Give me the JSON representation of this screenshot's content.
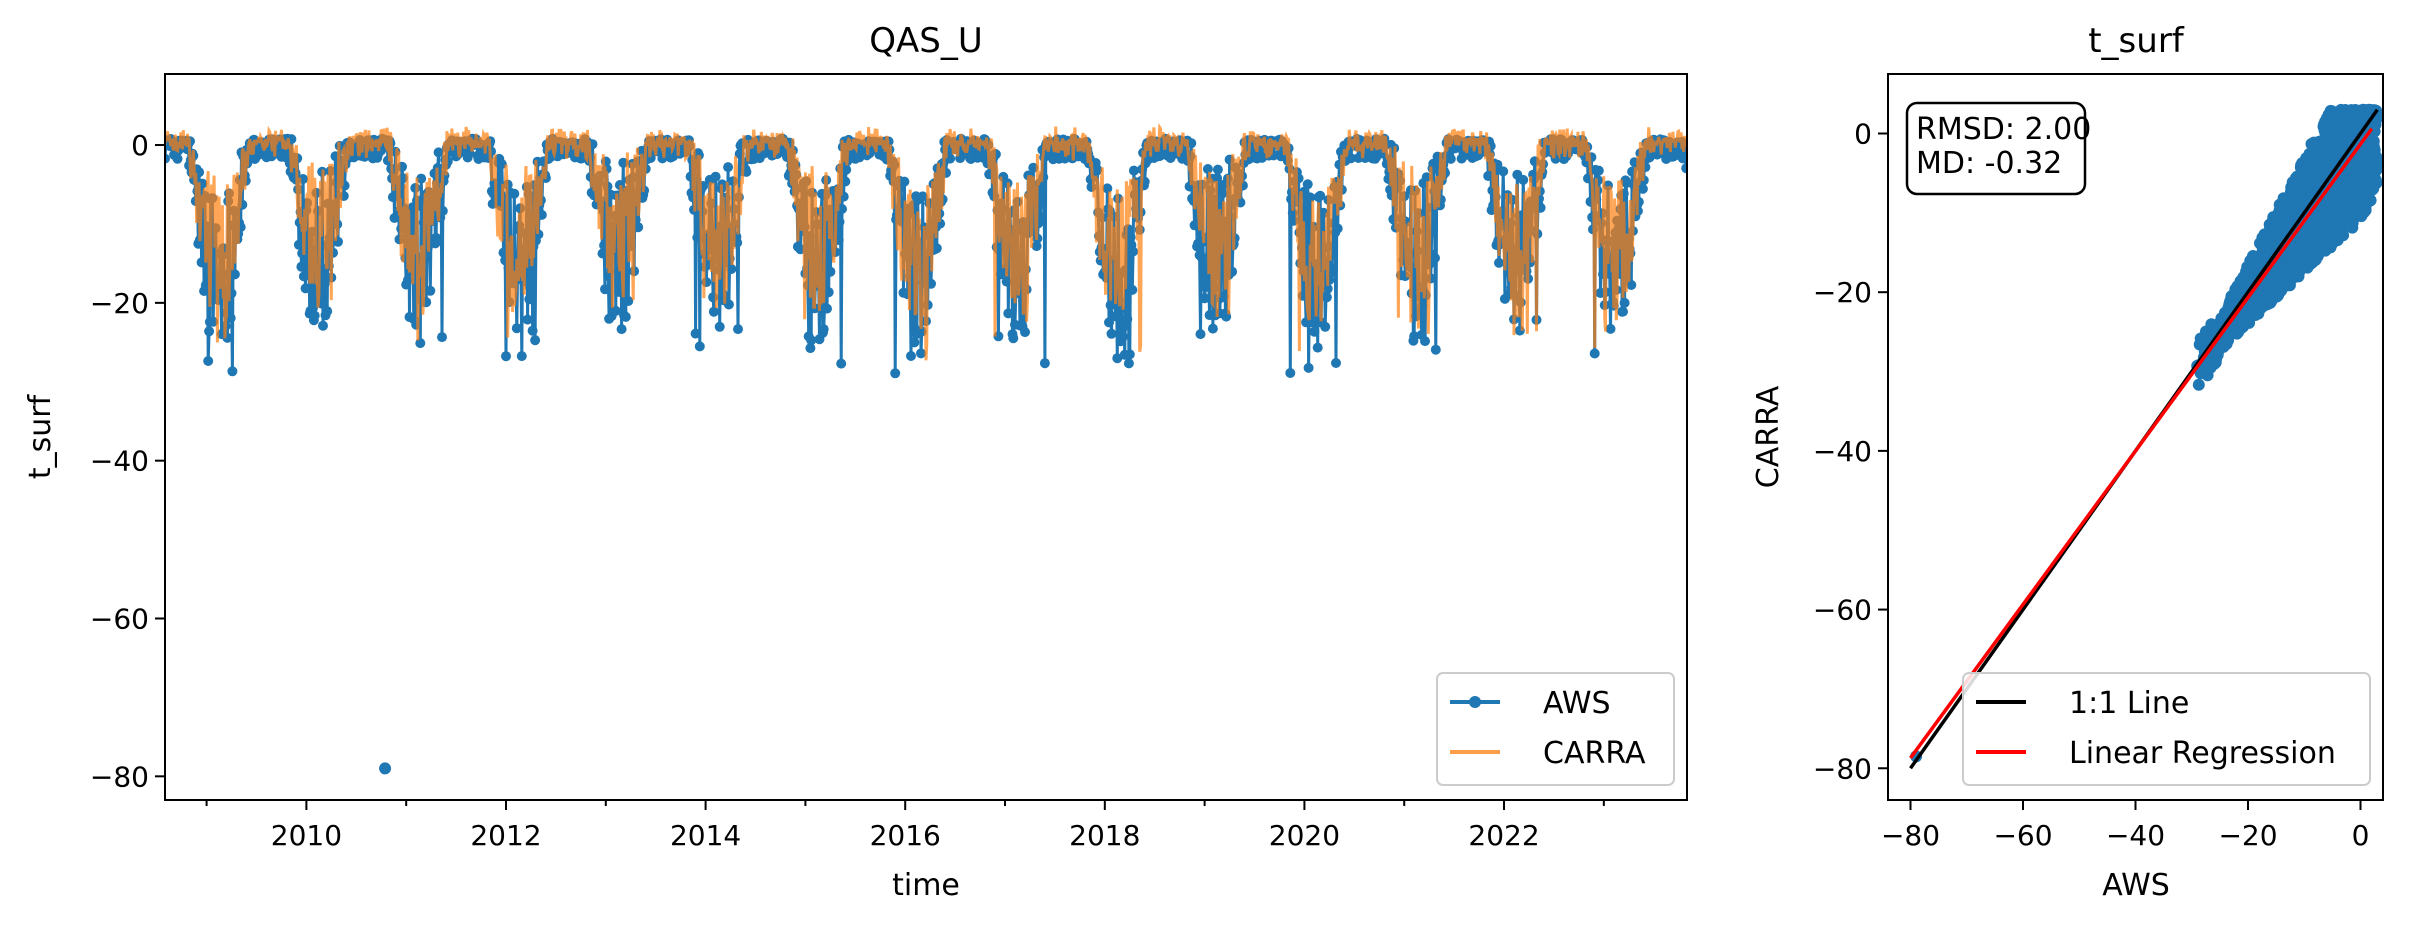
{
  "chart_data": [
    {
      "type": "line",
      "title": "QAS_U",
      "xlabel": "time",
      "ylabel": "t_surf",
      "x_ticks": [
        "2010",
        "2012",
        "2014",
        "2016",
        "2018",
        "2020",
        "2022"
      ],
      "y_ticks": [
        0,
        -20,
        -40,
        -60,
        -80
      ],
      "xlim": [
        "2008-08",
        "2023-11"
      ],
      "ylim": [
        -83,
        9
      ],
      "legend_position": "lower-right",
      "series": [
        {
          "name": "AWS",
          "style": "line-with-dots",
          "color": "#1f77b4",
          "winter_minima": [
            {
              "x": "2009-02",
              "y": -30
            },
            {
              "x": "2010-02",
              "y": -24
            },
            {
              "x": "2011-02",
              "y": -27
            },
            {
              "x": "2012-02",
              "y": -27
            },
            {
              "x": "2013-02",
              "y": -24
            },
            {
              "x": "2014-02",
              "y": -26
            },
            {
              "x": "2015-02",
              "y": -28
            },
            {
              "x": "2016-02",
              "y": -30
            },
            {
              "x": "2017-02",
              "y": -28
            },
            {
              "x": "2018-02",
              "y": -30
            },
            {
              "x": "2019-02",
              "y": -24
            },
            {
              "x": "2020-02",
              "y": -30
            },
            {
              "x": "2021-02",
              "y": -26
            },
            {
              "x": "2022-02",
              "y": -26
            },
            {
              "x": "2023-02",
              "y": -29
            }
          ],
          "outliers": [
            {
              "x": "2010-10-15",
              "y": -79
            }
          ]
        },
        {
          "name": "CARRA",
          "style": "line",
          "color": "#ff7f0e",
          "winter_minima": [
            {
              "x": "2009-02",
              "y": -27
            },
            {
              "x": "2010-02",
              "y": -23
            },
            {
              "x": "2011-02",
              "y": -25
            },
            {
              "x": "2012-02",
              "y": -25
            },
            {
              "x": "2013-02",
              "y": -22
            },
            {
              "x": "2014-02",
              "y": -24
            },
            {
              "x": "2015-02",
              "y": -25
            },
            {
              "x": "2016-02",
              "y": -28
            },
            {
              "x": "2017-02",
              "y": -26
            },
            {
              "x": "2018-02",
              "y": -28
            },
            {
              "x": "2019-02",
              "y": -23
            },
            {
              "x": "2020-02",
              "y": -27
            },
            {
              "x": "2021-02",
              "y": -25
            },
            {
              "x": "2022-02",
              "y": -27
            },
            {
              "x": "2023-02",
              "y": -27
            }
          ]
        }
      ]
    },
    {
      "type": "scatter",
      "title": "t_surf",
      "xlabel": "AWS",
      "ylabel": "CARRA",
      "x_ticks": [
        -80,
        -60,
        -40,
        -20,
        0
      ],
      "y_ticks": [
        0,
        -20,
        -40,
        -60,
        -80
      ],
      "xlim": [
        -84,
        4
      ],
      "ylim": [
        -84,
        7.5
      ],
      "stats_lines": [
        "RMSD: 2.00",
        "MD: -0.32"
      ],
      "legend_position": "lower-right",
      "scatter": {
        "color": "#1f77b4",
        "x_range": [
          -30,
          3
        ],
        "y_range": [
          -30,
          3
        ]
      },
      "lines": [
        {
          "name": "1:1 Line",
          "color": "#000000",
          "points": [
            [
              -80,
              -80
            ],
            [
              3,
              3
            ]
          ]
        },
        {
          "name": "Linear Regression",
          "color": "#ff0000",
          "points": [
            [
              -80,
              -78.7
            ],
            [
              2,
              0.6
            ]
          ]
        }
      ]
    }
  ]
}
